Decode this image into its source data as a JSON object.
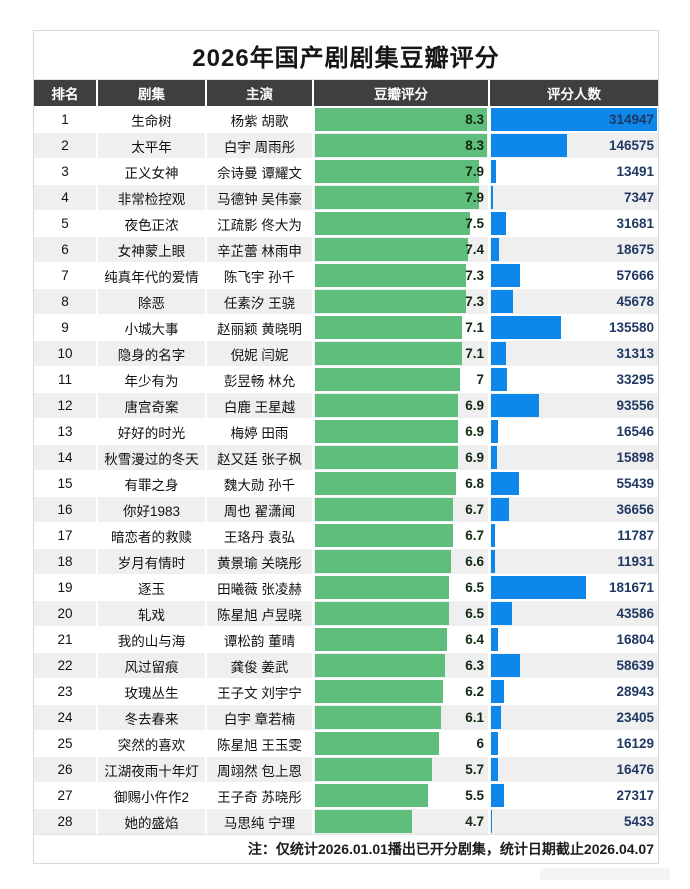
{
  "colors": {
    "header_bg": "#3f3f3f",
    "header_text": "#ffffff",
    "rating_bar": "#5fbe7b",
    "count_bar": "#0d87e9",
    "rating_text": "#10290f",
    "count_text": "#1f3864",
    "row_alt_bg": "#efefef"
  },
  "chart_data": {
    "type": "table",
    "title": "2026年国产剧剧集豆瓣评分",
    "columns": [
      "排名",
      "剧集",
      "主演",
      "豆瓣评分",
      "评分人数"
    ],
    "note": "注：仅统计2026.01.01播出已开分剧集，统计日期截止2026.04.07",
    "rating_axis": {
      "min": 0,
      "max": 8.3
    },
    "count_axis": {
      "min": 0,
      "max": 314947
    },
    "bar_style": "excel-data-bar",
    "rows": [
      {
        "rank": 1,
        "title": "生命树",
        "cast": "杨紫 胡歌",
        "rating": 8.3,
        "count": 314947
      },
      {
        "rank": 2,
        "title": "太平年",
        "cast": "白宇 周雨彤",
        "rating": 8.3,
        "count": 146575
      },
      {
        "rank": 3,
        "title": "正义女神",
        "cast": "佘诗曼 谭耀文",
        "rating": 7.9,
        "count": 13491
      },
      {
        "rank": 4,
        "title": "非常检控观",
        "cast": "马德钟 吴伟豪",
        "rating": 7.9,
        "count": 7347
      },
      {
        "rank": 5,
        "title": "夜色正浓",
        "cast": "江疏影 佟大为",
        "rating": 7.5,
        "count": 31681
      },
      {
        "rank": 6,
        "title": "女神蒙上眼",
        "cast": "辛芷蕾 林雨申",
        "rating": 7.4,
        "count": 18675
      },
      {
        "rank": 7,
        "title": "纯真年代的爱情",
        "cast": "陈飞宇 孙千",
        "rating": 7.3,
        "count": 57666
      },
      {
        "rank": 8,
        "title": "除恶",
        "cast": "任素汐 王骁",
        "rating": 7.3,
        "count": 45678
      },
      {
        "rank": 9,
        "title": "小城大事",
        "cast": "赵丽颖 黄晓明",
        "rating": 7.1,
        "count": 135580
      },
      {
        "rank": 10,
        "title": "隐身的名字",
        "cast": "倪妮 闫妮",
        "rating": 7.1,
        "count": 31313
      },
      {
        "rank": 11,
        "title": "年少有为",
        "cast": "彭昱畅 林允",
        "rating": 7,
        "count": 33295
      },
      {
        "rank": 12,
        "title": "唐宫奇案",
        "cast": "白鹿 王星越",
        "rating": 6.9,
        "count": 93556
      },
      {
        "rank": 13,
        "title": "好好的时光",
        "cast": "梅婷 田雨",
        "rating": 6.9,
        "count": 16546
      },
      {
        "rank": 14,
        "title": "秋雪漫过的冬天",
        "cast": "赵又廷 张子枫",
        "rating": 6.9,
        "count": 15898
      },
      {
        "rank": 15,
        "title": "有罪之身",
        "cast": "魏大勋 孙千",
        "rating": 6.8,
        "count": 55439
      },
      {
        "rank": 16,
        "title": "你好1983",
        "cast": "周也 翟潇闻",
        "rating": 6.7,
        "count": 36656
      },
      {
        "rank": 17,
        "title": "暗恋者的救赎",
        "cast": "王珞丹 袁弘",
        "rating": 6.7,
        "count": 11787
      },
      {
        "rank": 18,
        "title": "岁月有情时",
        "cast": "黄景瑜 关晓彤",
        "rating": 6.6,
        "count": 11931
      },
      {
        "rank": 19,
        "title": "逐玉",
        "cast": "田曦薇 张凌赫",
        "rating": 6.5,
        "count": 181671
      },
      {
        "rank": 20,
        "title": "轧戏",
        "cast": "陈星旭 卢昱晓",
        "rating": 6.5,
        "count": 43586
      },
      {
        "rank": 21,
        "title": "我的山与海",
        "cast": "谭松韵 董晴",
        "rating": 6.4,
        "count": 16804
      },
      {
        "rank": 22,
        "title": "风过留痕",
        "cast": "龚俊 姜武",
        "rating": 6.3,
        "count": 58639
      },
      {
        "rank": 23,
        "title": "玫瑰丛生",
        "cast": "王子文 刘宇宁",
        "rating": 6.2,
        "count": 28943
      },
      {
        "rank": 24,
        "title": "冬去春来",
        "cast": "白宇 章若楠",
        "rating": 6.1,
        "count": 23405
      },
      {
        "rank": 25,
        "title": "突然的喜欢",
        "cast": "陈星旭 王玉雯",
        "rating": 6,
        "count": 16129
      },
      {
        "rank": 26,
        "title": "江湖夜雨十年灯",
        "cast": "周翊然 包上恩",
        "rating": 5.7,
        "count": 16476
      },
      {
        "rank": 27,
        "title": "御赐小仵作2",
        "cast": "王子奇 苏晓彤",
        "rating": 5.5,
        "count": 27317
      },
      {
        "rank": 28,
        "title": "她的盛焰",
        "cast": "马思纯 宁理",
        "rating": 4.7,
        "count": 5433
      }
    ]
  }
}
